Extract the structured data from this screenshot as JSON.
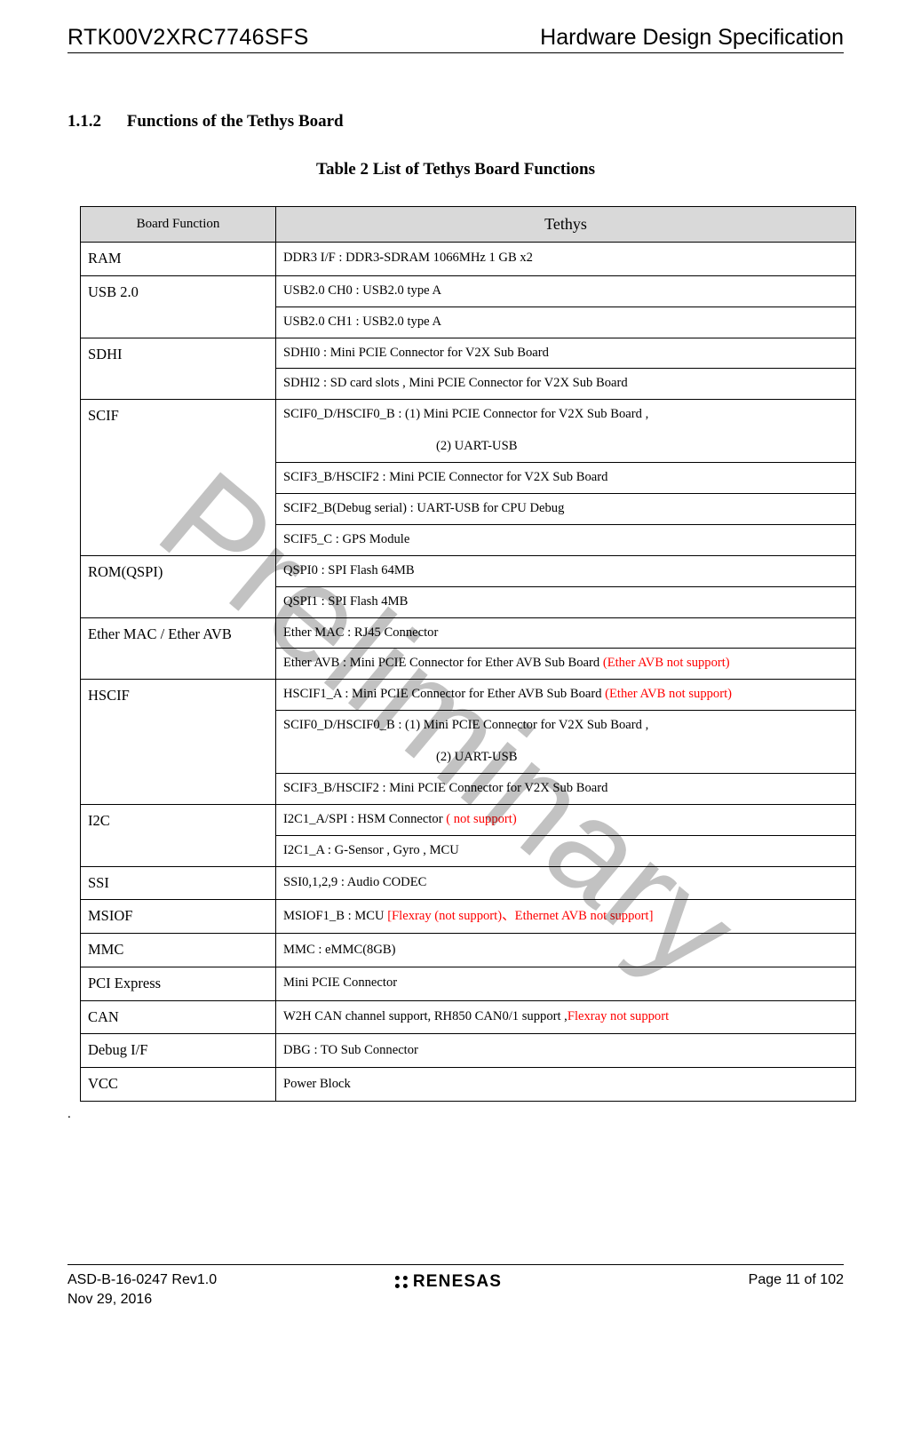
{
  "header": {
    "doc_id": "RTK00V2XRC7746SFS",
    "doc_title": "Hardware Design Specification"
  },
  "section": {
    "number": "1.1.2",
    "title": "Functions of the Tethys Board"
  },
  "table": {
    "caption": "Table 2    List of Tethys Board Functions",
    "header": {
      "col1": "Board Function",
      "col2": "Tethys"
    },
    "colors": {
      "header_bg": "#d9d9d9",
      "border": "#000000",
      "red": "#ff0000"
    },
    "rows": [
      {
        "func": "RAM",
        "lines": [
          {
            "t": "DDR3 I/F : DDR3-SDRAM 1066MHz 1 GB x2"
          }
        ]
      },
      {
        "func": "USB 2.0",
        "lines": [
          {
            "t": "USB2.0 CH0 : USB2.0 type A"
          },
          {
            "t": "USB2.0 CH1 : USB2.0 type A"
          }
        ]
      },
      {
        "func": "SDHI",
        "lines": [
          {
            "t": "SDHI0 : Mini PCIE Connector for V2X Sub Board"
          },
          {
            "t": "SDHI2 : SD card slots , Mini PCIE Connector for V2X Sub Board"
          }
        ]
      },
      {
        "func": "SCIF",
        "lines": [
          {
            "t": "SCIF0_D/HSCIF0_B : (1) Mini PCIE Connector for V2X Sub Board ,",
            "t2": "(2) UART-USB"
          },
          {
            "t": "SCIF3_B/HSCIF2 : Mini PCIE Connector for V2X Sub Board"
          },
          {
            "t": "SCIF2_B(Debug serial) : UART-USB for CPU Debug"
          },
          {
            "t": "SCIF5_C : GPS Module"
          }
        ]
      },
      {
        "func": "ROM(QSPI)",
        "lines": [
          {
            "t": "QSPI0 : SPI Flash 64MB"
          },
          {
            "t": "QSPI1 : SPI Flash 4MB"
          }
        ]
      },
      {
        "func": "Ether MAC / Ether AVB",
        "lines": [
          {
            "t": "Ether MAC : RJ45 Connector"
          },
          {
            "t": "Ether AVB : Mini PCIE Connector for Ether AVB Sub Board ",
            "red_suffix": "(Ether AVB not support)"
          }
        ]
      },
      {
        "func": "HSCIF",
        "lines": [
          {
            "t": "HSCIF1_A : Mini PCIE Connector for Ether AVB Sub Board ",
            "red_suffix": "(Ether AVB not support)"
          },
          {
            "t": "SCIF0_D/HSCIF0_B : (1) Mini PCIE Connector for V2X Sub Board ,",
            "t2": "(2) UART-USB"
          },
          {
            "t": "SCIF3_B/HSCIF2 : Mini PCIE Connector for V2X Sub Board"
          }
        ]
      },
      {
        "func": "I2C",
        "lines": [
          {
            "t": "I2C1_A/SPI : HSM Connector ",
            "red_suffix": "( not support)"
          },
          {
            "t": "I2C1_A    : G-Sensor , Gyro , MCU"
          }
        ]
      },
      {
        "func": "SSI",
        "lines": [
          {
            "t": "SSI0,1,2,9 : Audio CODEC"
          }
        ]
      },
      {
        "func": "MSIOF",
        "lines": [
          {
            "t": "MSIOF1_B : MCU ",
            "red_suffix": "[Flexray (not support)、Ethernet AVB not support]"
          }
        ]
      },
      {
        "func": "MMC",
        "lines": [
          {
            "t": "MMC : eMMC(8GB)"
          }
        ]
      },
      {
        "func": "PCI Express",
        "lines": [
          {
            "t": "Mini PCIE Connector"
          }
        ]
      },
      {
        "func": "CAN",
        "lines": [
          {
            "t": "W2H CAN channel support, RH850 CAN0/1 support ,",
            "red_suffix": "Flexray not support"
          }
        ]
      },
      {
        "func": "Debug I/F",
        "lines": [
          {
            "t": "DBG : TO Sub Connector"
          }
        ]
      },
      {
        "func": "VCC",
        "lines": [
          {
            "t": "Power Block"
          }
        ]
      }
    ]
  },
  "after_table": ".",
  "watermark": "Preliminary",
  "footer": {
    "left_line1": "ASD-B-16-0247   Rev1.0",
    "left_line2": "Nov 29, 2016",
    "center_brand": "RENESAS",
    "right_prefix": "Page ",
    "right_page": "11",
    "right_mid": " of ",
    "right_total": "102"
  }
}
